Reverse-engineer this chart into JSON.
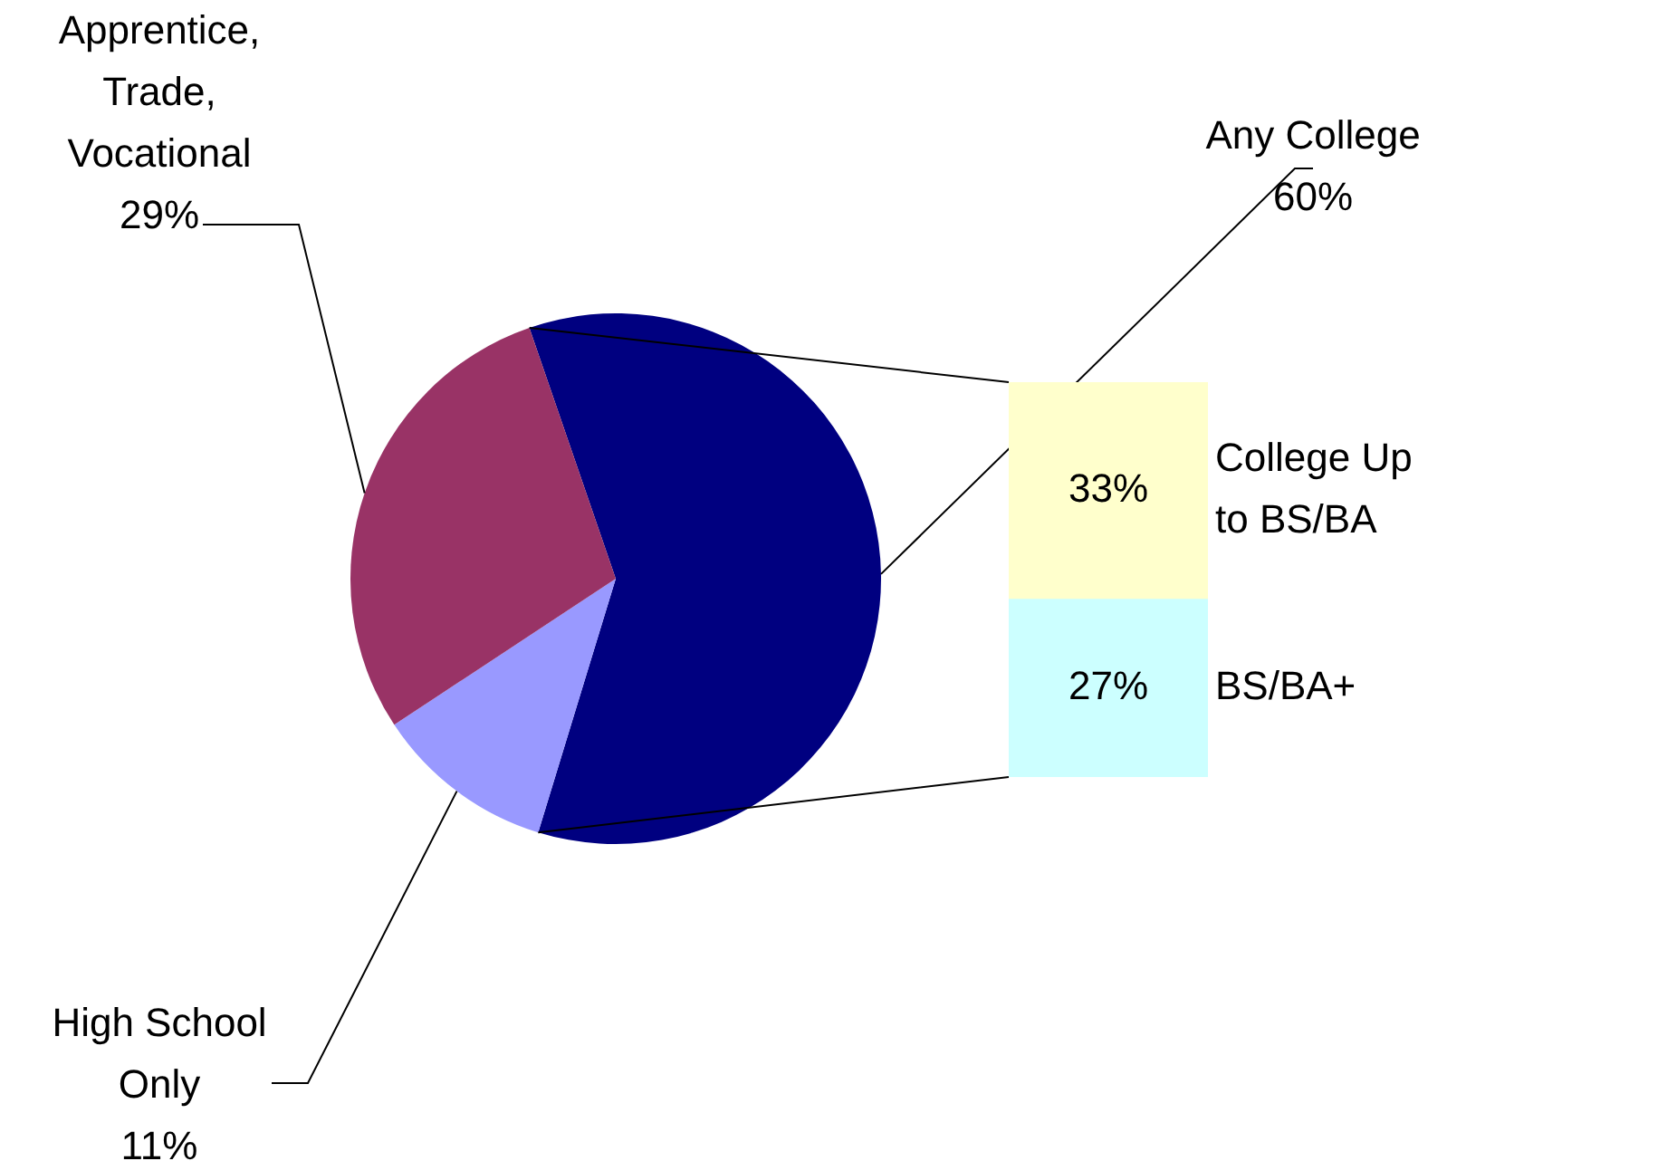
{
  "chart_data": [
    {
      "type": "pie",
      "categories": [
        "Any College",
        "High School Only",
        "Apprentice, Trade, Vocational"
      ],
      "values": [
        60,
        11,
        29
      ],
      "colors": [
        "#000080",
        "#9999ff",
        "#993366"
      ],
      "value_labels": [
        "60%",
        "11%",
        "29%"
      ]
    },
    {
      "type": "bar",
      "stacked": true,
      "categories": [
        null
      ],
      "tick_labels": false,
      "series": [
        {
          "name": "BS/BA+",
          "color": "#ccffff",
          "values": [
            27
          ],
          "value_labels": [
            "27%"
          ]
        },
        {
          "name": "College Up to BS/BA",
          "color": "#ffffcc",
          "values": [
            33
          ],
          "value_labels": [
            "33%"
          ]
        }
      ]
    }
  ]
}
